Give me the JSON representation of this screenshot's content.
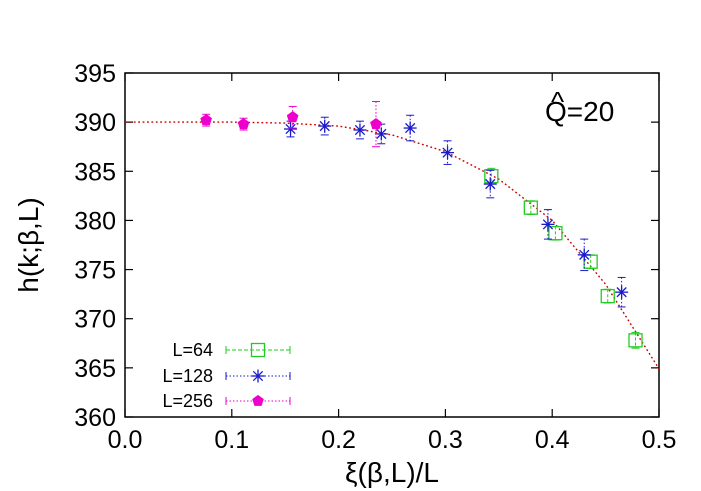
{
  "chart_data": {
    "type": "scatter",
    "xlabel": "ξ(β,L)/L",
    "ylabel": "h(k;β,L)",
    "xlim": [
      0.0,
      0.5
    ],
    "ylim": [
      360,
      395
    ],
    "x_ticks": [
      "0.0",
      "0.1",
      "0.2",
      "0.3",
      "0.4",
      "0.5"
    ],
    "y_ticks": [
      "360",
      "365",
      "370",
      "375",
      "380",
      "385",
      "390",
      "395"
    ],
    "annotation": {
      "text": "Q=20",
      "hat_symbol": "^"
    },
    "legend_position": "bottom-left",
    "series": [
      {
        "name": "L=64",
        "marker": "open-square",
        "color": "#22cc22",
        "line_style": "dashed",
        "points": [
          {
            "x": 0.343,
            "y": 384.5,
            "err": 0.8
          },
          {
            "x": 0.38,
            "y": 381.3,
            "err": 0.7
          },
          {
            "x": 0.403,
            "y": 378.7,
            "err": 0.7
          },
          {
            "x": 0.436,
            "y": 375.8,
            "err": 0.7
          },
          {
            "x": 0.452,
            "y": 372.3,
            "err": 0.7
          },
          {
            "x": 0.478,
            "y": 367.8,
            "err": 0.8
          }
        ]
      },
      {
        "name": "L=128",
        "marker": "asterisk",
        "color": "#1a1acc",
        "line_style": "dotted",
        "points": [
          {
            "x": 0.155,
            "y": 389.3,
            "err": 0.8
          },
          {
            "x": 0.187,
            "y": 389.6,
            "err": 0.9
          },
          {
            "x": 0.22,
            "y": 389.2,
            "err": 0.9
          },
          {
            "x": 0.24,
            "y": 388.8,
            "err": 1.0
          },
          {
            "x": 0.267,
            "y": 389.4,
            "err": 1.3
          },
          {
            "x": 0.302,
            "y": 386.9,
            "err": 1.2
          },
          {
            "x": 0.342,
            "y": 383.7,
            "err": 1.4
          },
          {
            "x": 0.396,
            "y": 379.6,
            "err": 1.5
          },
          {
            "x": 0.43,
            "y": 376.5,
            "err": 1.6
          },
          {
            "x": 0.465,
            "y": 372.7,
            "err": 1.5
          }
        ]
      },
      {
        "name": "L=256",
        "marker": "filled-pentagon",
        "color": "#ee00cc",
        "line_style": "dotted",
        "points": [
          {
            "x": 0.076,
            "y": 390.2,
            "err": 0.6
          },
          {
            "x": 0.111,
            "y": 389.8,
            "err": 0.6
          },
          {
            "x": 0.157,
            "y": 390.5,
            "err": 1.1
          },
          {
            "x": 0.235,
            "y": 389.8,
            "err": 2.3
          }
        ]
      }
    ],
    "fit_curve": {
      "color": "#cc0000",
      "style": "dotted",
      "points": [
        {
          "x": 0.0,
          "y": 390.0
        },
        {
          "x": 0.05,
          "y": 390.0
        },
        {
          "x": 0.1,
          "y": 390.0
        },
        {
          "x": 0.15,
          "y": 389.9
        },
        {
          "x": 0.2,
          "y": 389.6
        },
        {
          "x": 0.25,
          "y": 388.7
        },
        {
          "x": 0.3,
          "y": 387.0
        },
        {
          "x": 0.35,
          "y": 384.2
        },
        {
          "x": 0.4,
          "y": 380.0
        },
        {
          "x": 0.45,
          "y": 373.5
        },
        {
          "x": 0.5,
          "y": 364.9
        }
      ]
    }
  }
}
